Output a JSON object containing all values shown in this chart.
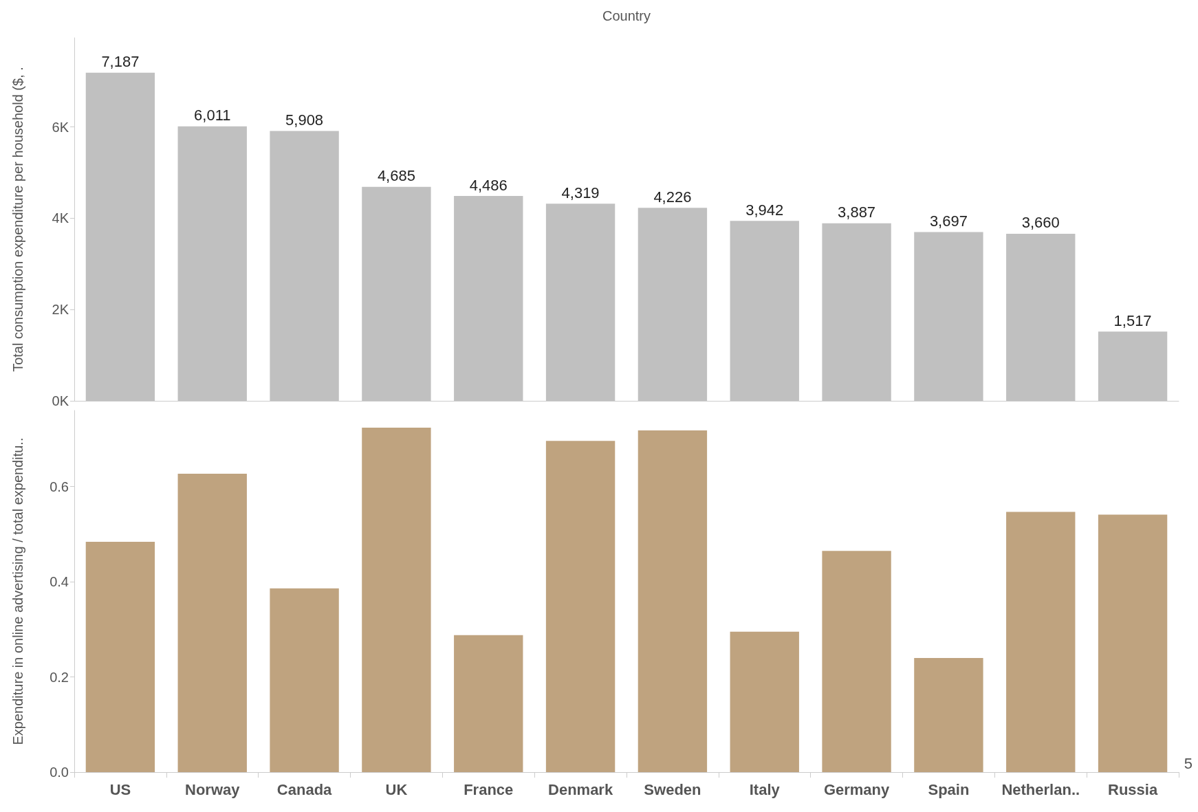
{
  "chart_data": [
    {
      "type": "bar",
      "xlabel": "Country",
      "ylabel": "Total consumption expenditure per household ($, .",
      "categories": [
        null,
        null,
        null,
        null,
        null,
        null,
        null,
        null,
        null,
        null,
        null,
        null
      ],
      "series": [
        {
          "color": "#c0c0c0",
          "values": [
            7187,
            6011,
            5908,
            4685,
            4486,
            4319,
            4226,
            3942,
            3887,
            3697,
            3660,
            1517
          ],
          "value_labels": [
            "7,187",
            "6,011",
            "5,908",
            "4,685",
            "4,486",
            "4,319",
            "4,226",
            "3,942",
            "3,887",
            "3,697",
            "3,660",
            "1,517"
          ]
        }
      ],
      "ylim": [
        0,
        7950
      ],
      "yticks": [
        {
          "value": 0,
          "label": "0K"
        },
        {
          "value": 2000,
          "label": "2K"
        },
        {
          "value": 4000,
          "label": "4K"
        },
        {
          "value": 6000,
          "label": "6K"
        }
      ],
      "tick_labels": "y",
      "grid": false
    },
    {
      "type": "bar",
      "ylabel": "Expenditure in online advertising / total expenditu..",
      "categories": [
        "US",
        "Norway",
        "Canada",
        "UK",
        "France",
        "Denmark",
        "Sweden",
        "Italy",
        "Germany",
        "Spain",
        "Netherlan..",
        "Russia"
      ],
      "series": [
        {
          "color": "#bfa37f",
          "values": [
            0.484,
            0.627,
            0.386,
            0.724,
            0.288,
            0.696,
            0.718,
            0.295,
            0.465,
            0.24,
            0.547,
            0.541
          ]
        }
      ],
      "ylim": [
        0,
        0.76
      ],
      "yticks": [
        {
          "value": 0,
          "label": "0.0"
        },
        {
          "value": 0.2,
          "label": "0.2"
        },
        {
          "value": 0.4,
          "label": "0.4"
        },
        {
          "value": 0.6,
          "label": "0.6"
        }
      ],
      "grid": false,
      "annotations": [
        "5"
      ]
    }
  ]
}
